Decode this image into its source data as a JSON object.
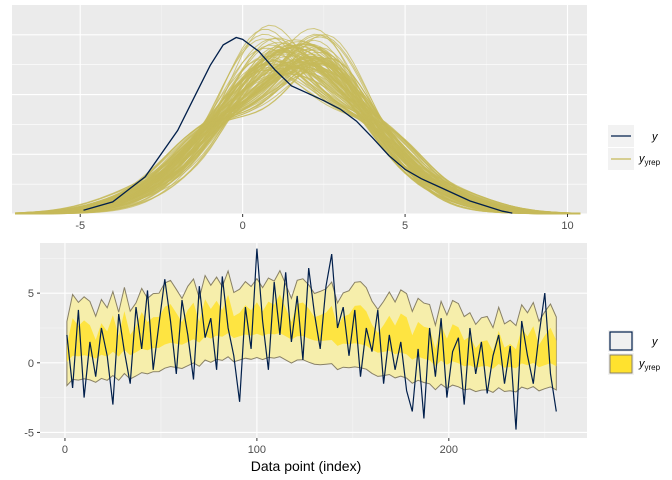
{
  "chart_data": [
    {
      "type": "line",
      "subtype": "density-overlay",
      "title": "",
      "xlabel": "",
      "ylabel": "",
      "xlim": [
        -7.1,
        10.6
      ],
      "x_ticks": [
        -5,
        0,
        5,
        10
      ],
      "y_ticks_shown": false,
      "grid": true,
      "legend_position": "right",
      "series": [
        {
          "name": "y",
          "role": "observed",
          "color": "#011f4b",
          "x": [
            -4.9,
            -4,
            -3,
            -2,
            -1.5,
            -1,
            -0.6,
            -0.2,
            0,
            0.5,
            1,
            1.5,
            2,
            2.5,
            3,
            3.5,
            4,
            4.5,
            5,
            5.5,
            6,
            7,
            8,
            8.3
          ],
          "density": [
            0.004,
            0.013,
            0.04,
            0.09,
            0.125,
            0.16,
            0.182,
            0.19,
            0.188,
            0.175,
            0.155,
            0.138,
            0.13,
            0.122,
            0.113,
            0.1,
            0.082,
            0.063,
            0.048,
            0.038,
            0.03,
            0.014,
            0.003,
            0.001
          ]
        },
        {
          "name": "yrep",
          "role": "replicated",
          "color": "#c6b95a",
          "draws_shown": 100,
          "center_mean": 1.6,
          "center_sd": 2.4,
          "mean_spread": 0.35
        }
      ]
    },
    {
      "type": "area",
      "subtype": "intervals-by-index",
      "title": "",
      "xlabel": "Data point (index)",
      "ylabel": "",
      "xlim": [
        -13,
        272
      ],
      "ylim": [
        -5.4,
        8.6
      ],
      "x_ticks": [
        0,
        100,
        200
      ],
      "y_ticks": [
        -5,
        0,
        5
      ],
      "grid": true,
      "legend_position": "right",
      "n_points": 258,
      "sampled_every": 3,
      "x": [
        1,
        4,
        7,
        10,
        13,
        16,
        19,
        22,
        25,
        28,
        31,
        34,
        37,
        40,
        43,
        46,
        49,
        52,
        55,
        58,
        61,
        64,
        67,
        70,
        73,
        76,
        79,
        82,
        85,
        88,
        91,
        94,
        97,
        100,
        103,
        106,
        109,
        112,
        115,
        118,
        121,
        124,
        127,
        130,
        133,
        136,
        139,
        142,
        145,
        148,
        151,
        154,
        157,
        160,
        163,
        166,
        169,
        172,
        175,
        178,
        181,
        184,
        187,
        190,
        193,
        196,
        199,
        202,
        205,
        208,
        211,
        214,
        217,
        220,
        223,
        226,
        229,
        232,
        235,
        238,
        241,
        244,
        247,
        250,
        253,
        256
      ],
      "series": [
        {
          "name": "y",
          "role": "observed",
          "color": "#011f4b",
          "values": [
            2.0,
            -1.8,
            3.8,
            -2.5,
            1.5,
            -1.0,
            2.5,
            0.5,
            -3.0,
            3.5,
            0.8,
            -1.5,
            4.0,
            1.0,
            5.2,
            -0.5,
            2.8,
            6.0,
            3.0,
            -0.8,
            4.5,
            2.0,
            -1.2,
            5.5,
            1.8,
            3.2,
            -0.5,
            6.2,
            2.5,
            0.5,
            -2.8,
            4.0,
            1.0,
            8.2,
            3.0,
            -0.5,
            5.8,
            2.0,
            6.5,
            1.5,
            4.8,
            0.2,
            6.8,
            3.5,
            1.0,
            5.5,
            7.8,
            2.5,
            4.0,
            0.5,
            3.8,
            -1.0,
            2.5,
            0.8,
            3.8,
            -1.5,
            2.0,
            -0.5,
            1.5,
            -2.0,
            -3.5,
            1.0,
            -4.0,
            2.5,
            -1.0,
            3.2,
            -2.5,
            0.8,
            1.8,
            -3.0,
            2.5,
            -0.8,
            1.5,
            -2.2,
            0.5,
            2.0,
            -1.5,
            1.2,
            -4.8,
            3.0,
            0.5,
            -1.5,
            2.0,
            5.0,
            -0.8,
            -3.5
          ]
        },
        {
          "name": "yrep",
          "role": "replicated",
          "fill_outer": "#f6eeab",
          "fill_inner": "#ffe22e",
          "outline": "#888066",
          "center": [
            1.3,
            1.3,
            1.4,
            1.4,
            1.4,
            1.5,
            1.5,
            1.5,
            1.6,
            1.6,
            1.7,
            1.7,
            1.8,
            1.8,
            1.9,
            2.0,
            2.0,
            2.1,
            2.2,
            2.3,
            2.4,
            2.4,
            2.5,
            2.6,
            2.7,
            2.7,
            2.8,
            2.9,
            2.9,
            2.9,
            3.0,
            3.0,
            3.0,
            3.0,
            3.0,
            3.0,
            3.0,
            2.9,
            2.9,
            2.9,
            2.8,
            2.8,
            2.7,
            2.7,
            2.6,
            2.6,
            2.5,
            2.4,
            2.4,
            2.3,
            2.2,
            2.1,
            2.1,
            2.0,
            1.9,
            1.8,
            1.7,
            1.6,
            1.5,
            1.4,
            1.3,
            1.3,
            1.2,
            1.1,
            1.0,
            1.0,
            0.9,
            0.9,
            0.8,
            0.8,
            0.8,
            0.8,
            0.8,
            0.8,
            0.8,
            0.8,
            0.8,
            0.8,
            0.8,
            0.8,
            0.8,
            0.8,
            0.8,
            0.8,
            0.8,
            0.8
          ],
          "inner_halfwidth": 1.0,
          "outer_halfwidth": 2.7
        }
      ]
    }
  ]
}
